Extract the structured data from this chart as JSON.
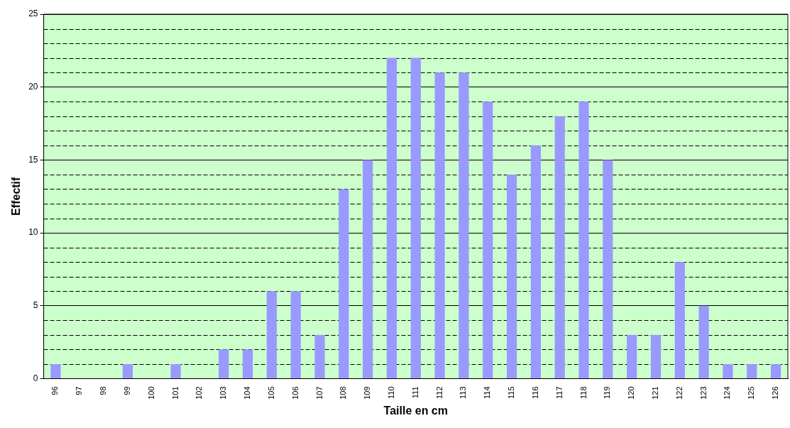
{
  "chart_data": {
    "type": "bar",
    "xlabel": "Taille en cm",
    "ylabel": "Effectif",
    "categories": [
      "96",
      "97",
      "98",
      "99",
      "100",
      "101",
      "102",
      "103",
      "104",
      "105",
      "106",
      "107",
      "108",
      "109",
      "110",
      "111",
      "112",
      "113",
      "114",
      "115",
      "116",
      "117",
      "118",
      "119",
      "120",
      "121",
      "122",
      "123",
      "124",
      "125",
      "126"
    ],
    "values": [
      1,
      0,
      0,
      1,
      0,
      1,
      0,
      2,
      2,
      6,
      6,
      3,
      13,
      15,
      22,
      22,
      21,
      21,
      19,
      14,
      16,
      18,
      19,
      15,
      3,
      3,
      8,
      5,
      1,
      1,
      1
    ],
    "color": "#9999ff",
    "ylim": [
      0,
      25
    ],
    "yticks": [
      0,
      {
        "value": 1,
        "label": null
      },
      {
        "value": 2,
        "label": null
      },
      {
        "value": 3,
        "label": null
      },
      {
        "value": 4,
        "label": null
      },
      5,
      {
        "value": 6,
        "label": null
      },
      {
        "value": 7,
        "label": null
      },
      {
        "value": 8,
        "label": null
      },
      {
        "value": 9,
        "label": null
      },
      10,
      {
        "value": 11,
        "label": null
      },
      {
        "value": 12,
        "label": null
      },
      {
        "value": 13,
        "label": null
      },
      {
        "value": 14,
        "label": null
      },
      15,
      {
        "value": 16,
        "label": null
      },
      {
        "value": 17,
        "label": null
      },
      {
        "value": 18,
        "label": null
      },
      {
        "value": 19,
        "label": null
      },
      20,
      {
        "value": 21,
        "label": null
      },
      {
        "value": 22,
        "label": null
      },
      {
        "value": 23,
        "label": null
      },
      {
        "value": 24,
        "label": null
      },
      25
    ],
    "grid": "y"
  }
}
